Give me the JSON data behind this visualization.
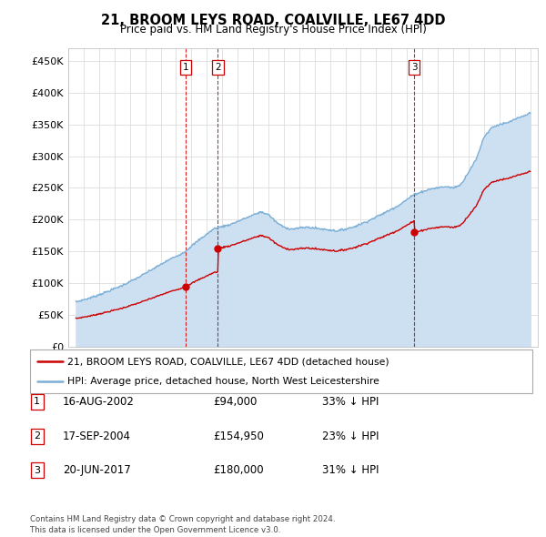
{
  "title": "21, BROOM LEYS ROAD, COALVILLE, LE67 4DD",
  "subtitle": "Price paid vs. HM Land Registry's House Price Index (HPI)",
  "ylabel_ticks": [
    "£0",
    "£50K",
    "£100K",
    "£150K",
    "£200K",
    "£250K",
    "£300K",
    "£350K",
    "£400K",
    "£450K"
  ],
  "ytick_vals": [
    0,
    50000,
    100000,
    150000,
    200000,
    250000,
    300000,
    350000,
    400000,
    450000
  ],
  "ylim": [
    0,
    470000
  ],
  "xlim_start": 1995.0,
  "xlim_end": 2025.5,
  "grid_color": "#dddddd",
  "sale1_date": 2002.62,
  "sale1_price": 94000,
  "sale2_date": 2004.72,
  "sale2_price": 154950,
  "sale3_date": 2017.47,
  "sale3_price": 180000,
  "sale_marker_color": "#cc0000",
  "hpi_color": "#7aaed6",
  "hpi_fill_color": "#cde0f2",
  "red_line_color": "#cc0000",
  "vline_color": "#cc0000",
  "legend_label_red": "21, BROOM LEYS ROAD, COALVILLE, LE67 4DD (detached house)",
  "legend_label_blue": "HPI: Average price, detached house, North West Leicestershire",
  "table_data": [
    {
      "num": "1",
      "date": "16-AUG-2002",
      "price": "£94,000",
      "hpi": "33% ↓ HPI"
    },
    {
      "num": "2",
      "date": "17-SEP-2004",
      "price": "£154,950",
      "hpi": "23% ↓ HPI"
    },
    {
      "num": "3",
      "date": "20-JUN-2017",
      "price": "£180,000",
      "hpi": "31% ↓ HPI"
    }
  ],
  "footer": "Contains HM Land Registry data © Crown copyright and database right 2024.\nThis data is licensed under the Open Government Licence v3.0.",
  "hpi_keypoints_x": [
    1995.5,
    1996.5,
    1997.5,
    1998.5,
    1999.5,
    2000.5,
    2001.5,
    2002.5,
    2003.5,
    2004.5,
    2005.5,
    2006.5,
    2007.5,
    2008.0,
    2008.5,
    2009.0,
    2009.5,
    2010.5,
    2011.5,
    2012.5,
    2013.5,
    2014.5,
    2015.5,
    2016.5,
    2017.5,
    2018.5,
    2019.5,
    2020.0,
    2020.5,
    2021.5,
    2022.0,
    2022.5,
    2023.0,
    2023.5,
    2024.0,
    2024.5,
    2025.0
  ],
  "hpi_keypoints_y": [
    70000,
    77000,
    86000,
    96000,
    108000,
    122000,
    136000,
    148000,
    168000,
    186000,
    192000,
    202000,
    212000,
    208000,
    196000,
    188000,
    185000,
    188000,
    185000,
    182000,
    188000,
    198000,
    210000,
    223000,
    240000,
    248000,
    252000,
    250000,
    255000,
    295000,
    330000,
    345000,
    350000,
    352000,
    358000,
    362000,
    368000
  ]
}
